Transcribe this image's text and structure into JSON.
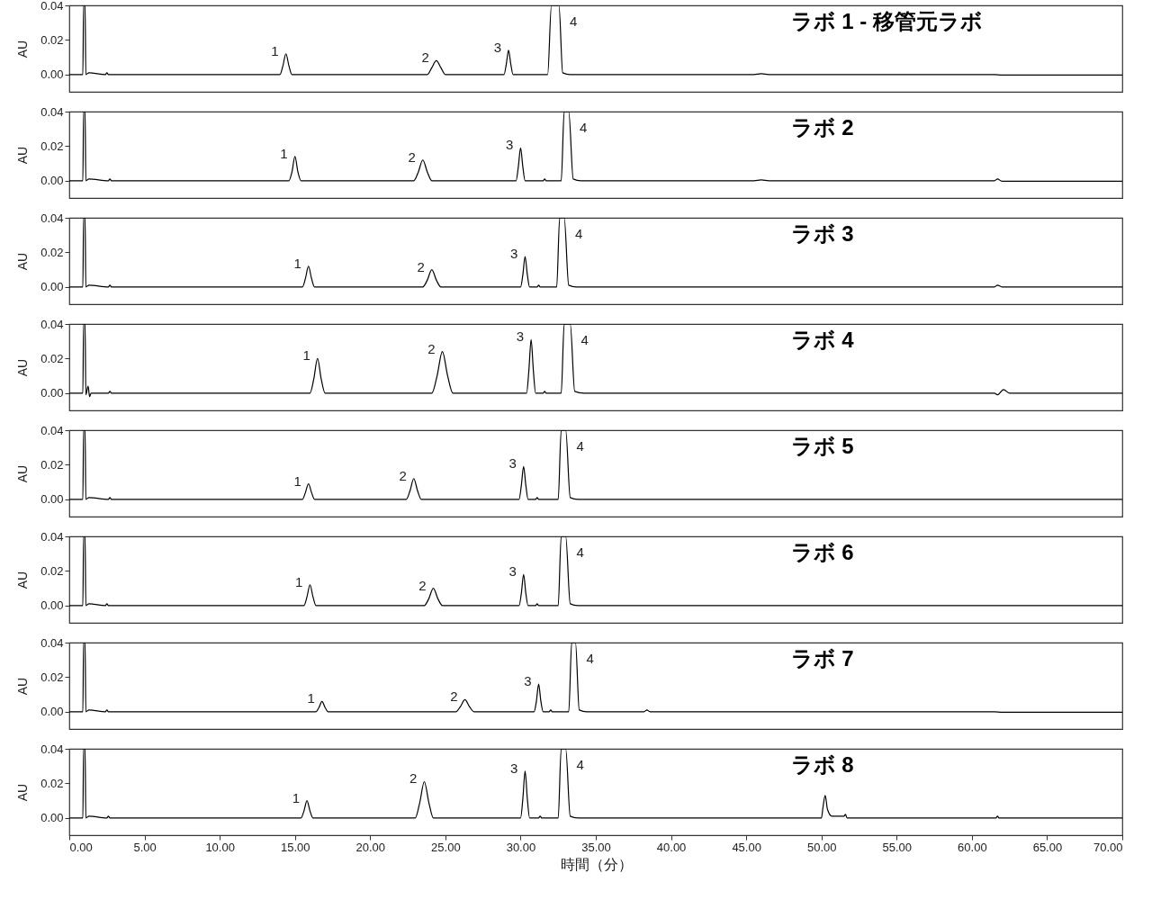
{
  "chart_data": [
    {
      "type": "line",
      "title": "ラボ 1 - 移管元ラボ",
      "ylabel": "AU",
      "xlim": [
        0,
        70
      ],
      "ylim": [
        -0.01,
        0.04
      ],
      "tick_labels": "y",
      "yticks": [
        {
          "value": 0,
          "label": "0.00"
        },
        {
          "value": 0.02,
          "label": "0.02"
        },
        {
          "value": 0.04,
          "label": "0.04"
        }
      ],
      "series": [
        {
          "color": "#000000",
          "x": [
            0,
            0.9,
            0.95,
            1.05,
            1.1,
            1.3,
            2.4,
            2.5,
            2.6,
            14.0,
            14.2,
            14.4,
            14.6,
            14.8,
            23.8,
            24.1,
            24.4,
            24.7,
            25.0,
            28.9,
            29.05,
            29.2,
            29.35,
            29.5,
            31.8,
            32.05,
            32.55,
            32.8,
            33.3,
            45.5,
            46.0,
            46.5,
            61.5,
            62.0,
            70
          ],
          "values": [
            0,
            0,
            0.04,
            0.04,
            0,
            0.001,
            0,
            0.001,
            0,
            0,
            0.005,
            0.012,
            0.005,
            0,
            0,
            0.004,
            0.008,
            0.004,
            0,
            0,
            0.006,
            0.014,
            0.006,
            0,
            0,
            0.04,
            0.04,
            0.001,
            0,
            0,
            0.0005,
            0,
            0,
            -0.0003,
            -0.0003
          ]
        }
      ],
      "annotations": [
        {
          "text": "1",
          "x": 14.4,
          "y": 0.012
        },
        {
          "text": "2",
          "x": 24.4,
          "y": 0.008
        },
        {
          "text": "3",
          "x": 29.2,
          "y": 0.014
        },
        {
          "text": "4",
          "x": 32.55,
          "y": 0.04
        }
      ]
    },
    {
      "type": "line",
      "title": "ラボ 2",
      "ylabel": "AU",
      "xlim": [
        0,
        70
      ],
      "ylim": [
        -0.01,
        0.04
      ],
      "tick_labels": "y",
      "yticks": [
        {
          "value": 0,
          "label": "0.00"
        },
        {
          "value": 0.02,
          "label": "0.02"
        },
        {
          "value": 0.04,
          "label": "0.04"
        }
      ],
      "series": [
        {
          "color": "#000000",
          "x": [
            0,
            0.9,
            0.95,
            1.05,
            1.1,
            1.3,
            2.6,
            2.7,
            2.8,
            14.6,
            14.8,
            15.0,
            15.2,
            15.4,
            22.9,
            23.2,
            23.5,
            23.8,
            24.1,
            29.7,
            29.85,
            30.0,
            30.15,
            30.3,
            31.5,
            31.6,
            31.7,
            32.7,
            32.9,
            33.2,
            33.5,
            34.0,
            45.5,
            46.0,
            46.5,
            61.5,
            61.7,
            62.0,
            70
          ],
          "values": [
            0,
            0,
            0.04,
            0.04,
            0,
            0.001,
            0,
            0.001,
            0,
            0,
            0.005,
            0.014,
            0.005,
            0,
            0,
            0.005,
            0.012,
            0.005,
            0,
            0,
            0.008,
            0.019,
            0.008,
            0,
            0,
            0.001,
            0,
            0,
            0.04,
            0.04,
            0.001,
            0,
            0,
            0.0005,
            0,
            0,
            0.001,
            -0.0003,
            -0.0003
          ]
        }
      ],
      "annotations": [
        {
          "text": "1",
          "x": 15.0,
          "y": 0.014
        },
        {
          "text": "2",
          "x": 23.5,
          "y": 0.012
        },
        {
          "text": "3",
          "x": 30.0,
          "y": 0.019
        },
        {
          "text": "4",
          "x": 33.2,
          "y": 0.04
        }
      ]
    },
    {
      "type": "line",
      "title": "ラボ 3",
      "ylabel": "AU",
      "xlim": [
        0,
        70
      ],
      "ylim": [
        -0.01,
        0.04
      ],
      "tick_labels": "y",
      "yticks": [
        {
          "value": 0,
          "label": "0.00"
        },
        {
          "value": 0.02,
          "label": "0.02"
        },
        {
          "value": 0.04,
          "label": "0.04"
        }
      ],
      "series": [
        {
          "color": "#000000",
          "x": [
            0,
            0.9,
            0.95,
            1.05,
            1.1,
            1.3,
            2.6,
            2.7,
            2.8,
            15.5,
            15.7,
            15.9,
            16.1,
            16.3,
            23.5,
            23.8,
            24.1,
            24.4,
            24.7,
            30.0,
            30.15,
            30.3,
            30.45,
            30.6,
            31.1,
            31.2,
            31.3,
            32.4,
            32.6,
            32.9,
            33.2,
            33.7,
            61.5,
            61.7,
            62.0,
            70
          ],
          "values": [
            0,
            0,
            0.04,
            0.04,
            0,
            0.001,
            0,
            0.001,
            0,
            0,
            0.005,
            0.012,
            0.005,
            0,
            0,
            0.004,
            0.01,
            0.004,
            0,
            0,
            0.007,
            0.0175,
            0.007,
            0,
            0,
            0.001,
            0,
            0,
            0.04,
            0.04,
            0.001,
            0,
            0,
            0.001,
            0,
            0
          ]
        }
      ],
      "annotations": [
        {
          "text": "1",
          "x": 15.9,
          "y": 0.012
        },
        {
          "text": "2",
          "x": 24.1,
          "y": 0.01
        },
        {
          "text": "3",
          "x": 30.3,
          "y": 0.0175
        },
        {
          "text": "4",
          "x": 32.9,
          "y": 0.04
        }
      ]
    },
    {
      "type": "line",
      "title": "ラボ 4",
      "ylabel": "AU",
      "xlim": [
        0,
        70
      ],
      "ylim": [
        -0.01,
        0.04
      ],
      "tick_labels": "y",
      "yticks": [
        {
          "value": 0,
          "label": "0.00"
        },
        {
          "value": 0.02,
          "label": "0.02"
        },
        {
          "value": 0.04,
          "label": "0.04"
        }
      ],
      "series": [
        {
          "color": "#000000",
          "x": [
            0,
            0.9,
            0.95,
            1.05,
            1.1,
            1.25,
            1.35,
            1.45,
            2.6,
            2.7,
            2.8,
            16.0,
            16.25,
            16.5,
            16.75,
            17.0,
            24.1,
            24.45,
            24.8,
            25.15,
            25.5,
            30.4,
            30.55,
            30.7,
            30.85,
            31.0,
            31.5,
            31.6,
            31.7,
            32.7,
            32.9,
            33.3,
            33.6,
            34.2,
            61.5,
            61.7,
            62.1,
            62.5,
            70
          ],
          "values": [
            0,
            0,
            0.04,
            0.04,
            -0.001,
            0.004,
            -0.002,
            0,
            0,
            0.001,
            0,
            0,
            0.008,
            0.02,
            0.008,
            0,
            0,
            0.01,
            0.024,
            0.01,
            0,
            0,
            0.013,
            0.031,
            0.013,
            0,
            0,
            0.001,
            0,
            0,
            0.04,
            0.04,
            0.001,
            0,
            0,
            -0.001,
            0.002,
            0,
            0
          ]
        }
      ],
      "annotations": [
        {
          "text": "1",
          "x": 16.5,
          "y": 0.02
        },
        {
          "text": "2",
          "x": 24.8,
          "y": 0.024
        },
        {
          "text": "3",
          "x": 30.7,
          "y": 0.031
        },
        {
          "text": "4",
          "x": 33.3,
          "y": 0.04
        }
      ]
    },
    {
      "type": "line",
      "title": "ラボ 5",
      "ylabel": "AU",
      "xlim": [
        0,
        70
      ],
      "ylim": [
        -0.01,
        0.04
      ],
      "tick_labels": "y",
      "yticks": [
        {
          "value": 0,
          "label": "0.00"
        },
        {
          "value": 0.02,
          "label": "0.02"
        },
        {
          "value": 0.04,
          "label": "0.04"
        }
      ],
      "series": [
        {
          "color": "#000000",
          "x": [
            0,
            0.9,
            0.95,
            1.05,
            1.1,
            1.3,
            2.6,
            2.7,
            2.8,
            15.5,
            15.7,
            15.9,
            16.1,
            16.3,
            22.4,
            22.65,
            22.9,
            23.15,
            23.4,
            29.9,
            30.05,
            30.2,
            30.35,
            30.5,
            31.0,
            31.1,
            31.2,
            32.5,
            32.7,
            33.0,
            33.3,
            33.8,
            70
          ],
          "values": [
            0,
            0,
            0.04,
            0.04,
            0,
            0.001,
            0,
            0.001,
            0,
            0,
            0.004,
            0.009,
            0.004,
            0,
            0,
            0.005,
            0.012,
            0.005,
            0,
            0,
            0.008,
            0.019,
            0.008,
            0,
            0,
            0.001,
            0,
            0,
            0.04,
            0.04,
            0.001,
            0,
            0
          ]
        }
      ],
      "annotations": [
        {
          "text": "1",
          "x": 15.9,
          "y": 0.009
        },
        {
          "text": "2",
          "x": 22.9,
          "y": 0.012
        },
        {
          "text": "3",
          "x": 30.2,
          "y": 0.019
        },
        {
          "text": "4",
          "x": 33.0,
          "y": 0.04
        }
      ]
    },
    {
      "type": "line",
      "title": "ラボ 6",
      "ylabel": "AU",
      "xlim": [
        0,
        70
      ],
      "ylim": [
        -0.01,
        0.04
      ],
      "tick_labels": "y",
      "yticks": [
        {
          "value": 0,
          "label": "0.00"
        },
        {
          "value": 0.02,
          "label": "0.02"
        },
        {
          "value": 0.04,
          "label": "0.04"
        }
      ],
      "series": [
        {
          "color": "#000000",
          "x": [
            0,
            0.9,
            0.95,
            1.05,
            1.1,
            1.3,
            2.4,
            2.5,
            2.6,
            15.6,
            15.8,
            16.0,
            16.2,
            16.4,
            23.6,
            23.9,
            24.2,
            24.5,
            24.8,
            29.9,
            30.05,
            30.2,
            30.35,
            30.5,
            31.0,
            31.1,
            31.2,
            32.5,
            32.7,
            33.0,
            33.3,
            33.8,
            70
          ],
          "values": [
            0,
            0,
            0.04,
            0.04,
            0,
            0.001,
            0,
            0.001,
            0,
            0,
            0.005,
            0.012,
            0.005,
            0,
            0,
            0.004,
            0.01,
            0.004,
            0,
            0,
            0.007,
            0.018,
            0.007,
            0,
            0,
            0.001,
            0,
            0,
            0.04,
            0.04,
            0.001,
            0,
            0
          ]
        }
      ],
      "annotations": [
        {
          "text": "1",
          "x": 16.0,
          "y": 0.012
        },
        {
          "text": "2",
          "x": 24.2,
          "y": 0.01
        },
        {
          "text": "3",
          "x": 30.2,
          "y": 0.018
        },
        {
          "text": "4",
          "x": 33.0,
          "y": 0.04
        }
      ]
    },
    {
      "type": "line",
      "title": "ラボ 7",
      "ylabel": "AU",
      "xlim": [
        0,
        70
      ],
      "ylim": [
        -0.01,
        0.04
      ],
      "tick_labels": "y",
      "yticks": [
        {
          "value": 0,
          "label": "0.00"
        },
        {
          "value": 0.02,
          "label": "0.02"
        },
        {
          "value": 0.04,
          "label": "0.04"
        }
      ],
      "series": [
        {
          "color": "#000000",
          "x": [
            0,
            0.9,
            0.95,
            1.05,
            1.1,
            1.3,
            2.4,
            2.5,
            2.6,
            16.4,
            16.6,
            16.8,
            17.0,
            17.2,
            25.7,
            26.0,
            26.3,
            26.6,
            26.9,
            30.9,
            31.05,
            31.2,
            31.35,
            31.5,
            31.9,
            32.0,
            32.1,
            33.2,
            33.4,
            33.65,
            33.9,
            34.4,
            38.2,
            38.4,
            38.6,
            61.5,
            62.0,
            70
          ],
          "values": [
            0,
            0,
            0.04,
            0.04,
            0,
            0.001,
            0,
            0.001,
            0,
            0,
            0.0025,
            0.006,
            0.0025,
            0,
            0,
            0.003,
            0.007,
            0.003,
            0,
            0,
            0.006,
            0.016,
            0.006,
            0,
            0,
            0.001,
            0,
            0,
            0.04,
            0.04,
            0.001,
            0,
            0,
            0.001,
            0,
            0,
            -0.0003,
            -0.0003
          ]
        }
      ],
      "annotations": [
        {
          "text": "1",
          "x": 16.8,
          "y": 0.006
        },
        {
          "text": "2",
          "x": 26.3,
          "y": 0.007
        },
        {
          "text": "3",
          "x": 31.2,
          "y": 0.016
        },
        {
          "text": "4",
          "x": 33.65,
          "y": 0.04
        }
      ]
    },
    {
      "type": "line",
      "title": "ラボ 8",
      "xlabel": "時間（分）",
      "ylabel": "AU",
      "xlim": [
        0,
        70
      ],
      "ylim": [
        -0.01,
        0.04
      ],
      "xticks": [
        {
          "value": 0,
          "label": "0.00"
        },
        {
          "value": 5,
          "label": "5.00"
        },
        {
          "value": 10,
          "label": "10.00"
        },
        {
          "value": 15,
          "label": "15.00"
        },
        {
          "value": 20,
          "label": "20.00"
        },
        {
          "value": 25,
          "label": "25.00"
        },
        {
          "value": 30,
          "label": "30.00"
        },
        {
          "value": 35,
          "label": "35.00"
        },
        {
          "value": 40,
          "label": "40.00"
        },
        {
          "value": 45,
          "label": "45.00"
        },
        {
          "value": 50,
          "label": "50.00"
        },
        {
          "value": 55,
          "label": "55.00"
        },
        {
          "value": 60,
          "label": "60.00"
        },
        {
          "value": 65,
          "label": "65.00"
        },
        {
          "value": 70,
          "label": "70.00"
        }
      ],
      "yticks": [
        {
          "value": 0,
          "label": "0.00"
        },
        {
          "value": 0.02,
          "label": "0.02"
        },
        {
          "value": 0.04,
          "label": "0.04"
        }
      ],
      "series": [
        {
          "color": "#000000",
          "x": [
            0,
            0.9,
            0.95,
            1.05,
            1.1,
            1.3,
            2.5,
            2.6,
            2.7,
            15.4,
            15.6,
            15.8,
            16.0,
            16.2,
            23.0,
            23.3,
            23.6,
            23.9,
            24.2,
            30.0,
            30.15,
            30.3,
            30.45,
            30.6,
            31.2,
            31.3,
            31.4,
            32.5,
            32.7,
            33.0,
            33.3,
            33.8,
            50.0,
            50.1,
            50.25,
            50.4,
            50.7,
            51.5,
            51.6,
            51.7,
            61.6,
            61.7,
            61.8,
            70
          ],
          "values": [
            0,
            0,
            0.04,
            0.04,
            0,
            0.001,
            0,
            0.001,
            0,
            0,
            0.004,
            0.01,
            0.004,
            0,
            0,
            0.009,
            0.021,
            0.009,
            0,
            0,
            0.011,
            0.027,
            0.011,
            0,
            0,
            0.001,
            0,
            0,
            0.04,
            0.04,
            0.001,
            0,
            0,
            0.006,
            0.013,
            0.005,
            0.001,
            0.001,
            0.002,
            0,
            0,
            0.001,
            0,
            0
          ]
        }
      ],
      "annotations": [
        {
          "text": "1",
          "x": 15.8,
          "y": 0.01
        },
        {
          "text": "2",
          "x": 23.6,
          "y": 0.021
        },
        {
          "text": "3",
          "x": 30.3,
          "y": 0.027
        },
        {
          "text": "4",
          "x": 33.0,
          "y": 0.04
        }
      ]
    }
  ]
}
